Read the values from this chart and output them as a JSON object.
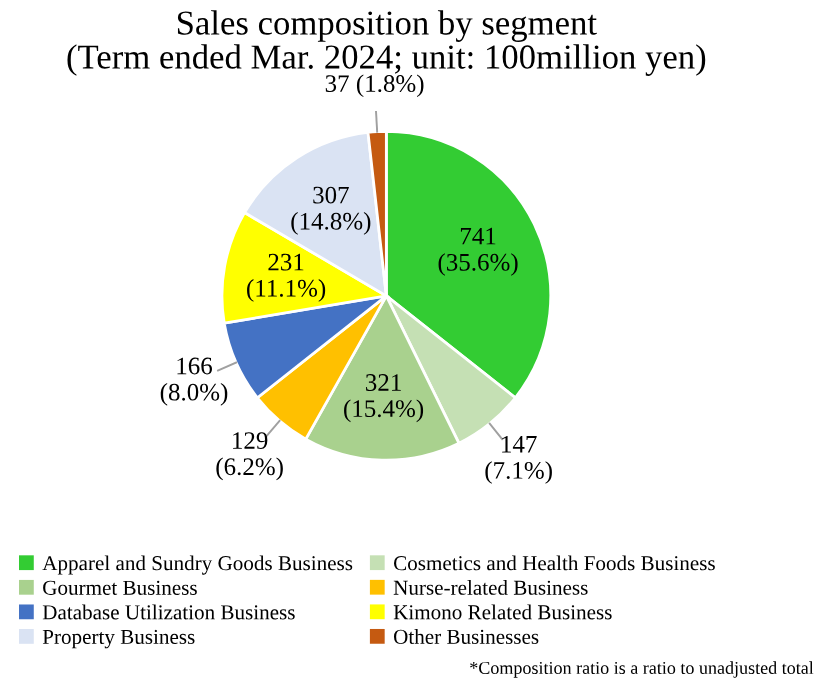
{
  "chart_data": {
    "type": "pie",
    "title": "Sales composition by segment\n(Term ended Mar. 2024; unit: 100million yen)",
    "categories": [
      "Apparel and Sundry Goods Business",
      "Cosmetics and Health Foods Business",
      "Gourmet Business",
      "Nurse-related Business",
      "Database Utilization Business",
      "Kimono Related Business",
      "Property Business",
      "Other Businesses"
    ],
    "values": [
      741,
      147,
      321,
      129,
      166,
      231,
      307,
      37
    ],
    "colors": [
      "#33cc33",
      "#c5e0b4",
      "#a9d18e",
      "#ffc000",
      "#4472c4",
      "#ffff00",
      "#dae3f3",
      "#c55a11"
    ],
    "value_labels": [
      "741\n(35.6%)",
      "147\n(7.1%)",
      "321\n(15.4%)",
      "129\n(6.2%)",
      "166\n(8.0%)",
      "231\n(11.1%)",
      "307\n(14.8%)",
      "37 (1.8%)"
    ],
    "legend": "bottom",
    "annotations": [
      "*Composition ratio is a ratio to unadjusted total"
    ]
  }
}
